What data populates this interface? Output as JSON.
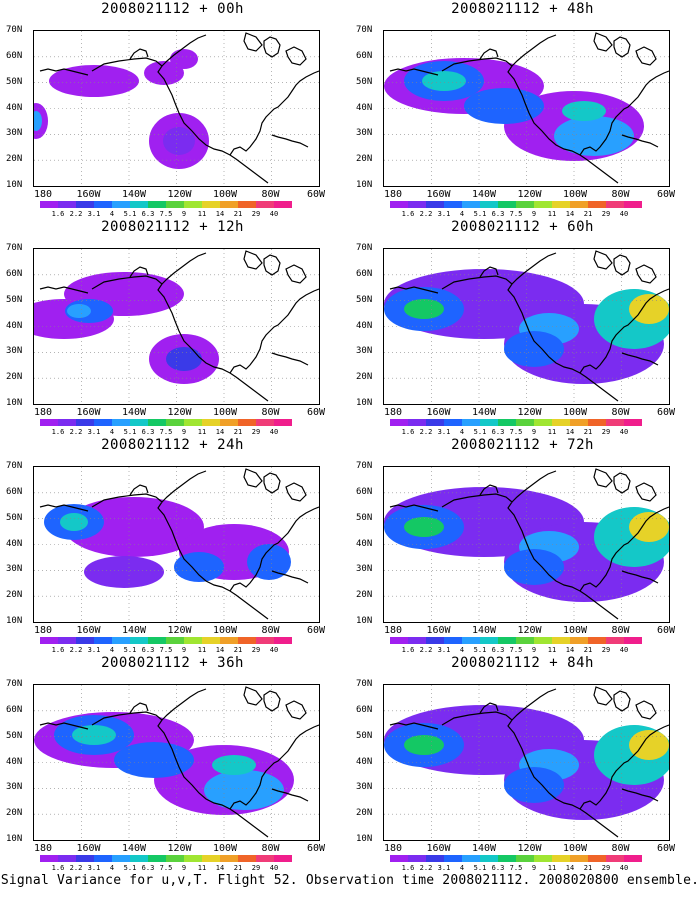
{
  "panels": [
    {
      "title": "2008021112 + 00h",
      "intensity": 0
    },
    {
      "title": "2008021112 + 48h",
      "intensity": 3
    },
    {
      "title": "2008021112 + 12h",
      "intensity": 1
    },
    {
      "title": "2008021112 + 60h",
      "intensity": 4
    },
    {
      "title": "2008021112 + 24h",
      "intensity": 2
    },
    {
      "title": "2008021112 + 72h",
      "intensity": 4
    },
    {
      "title": "2008021112 + 36h",
      "intensity": 3
    },
    {
      "title": "2008021112 + 84h",
      "intensity": 4
    }
  ],
  "lat_labels": [
    "70N",
    "60N",
    "50N",
    "40N",
    "30N",
    "20N",
    "10N"
  ],
  "lon_labels": [
    "180",
    "160W",
    "140W",
    "120W",
    "100W",
    "80W",
    "60W"
  ],
  "colorbar": {
    "labels": [
      "1.6",
      "2.2",
      "3.1",
      "4",
      "5.1",
      "6.3",
      "7.5",
      "9",
      "11",
      "14",
      "21",
      "29",
      "40"
    ],
    "colors": [
      "#a020f0",
      "#7b2cf0",
      "#3a3ae8",
      "#1e64ff",
      "#28a0ff",
      "#14c8c8",
      "#14c864",
      "#5ad23c",
      "#a0e632",
      "#e6d228",
      "#f0a028",
      "#f06428",
      "#f03c78",
      "#f01e8c"
    ]
  },
  "footer": "Signal Variance for u,v,T. Flight 52. Observation time 2008021112. 2008020800 ensemble."
}
